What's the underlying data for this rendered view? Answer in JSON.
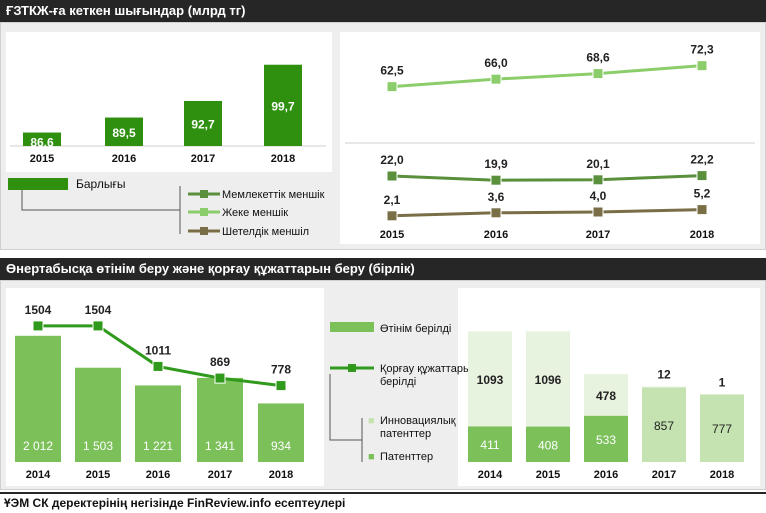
{
  "colors": {
    "bar_dark": "#2f8f0f",
    "bar_mid": "#7cc05a",
    "bar_light": "#c5e3b0",
    "bar_pale": "#e7f2df",
    "line_light": "#8ccd6b",
    "line_mid": "#5a8f3c",
    "line_dark": "#7a6e46",
    "line_patent": "#2f9a1b"
  },
  "top": {
    "title": "ҒЗТКЖ-ға кеткен шығындар (млрд тг)",
    "legend": {
      "total": "Барлығы",
      "state": "Мемлекеттік меншік",
      "private": "Жеке меншік",
      "foreign": "Шетелдік меншіл"
    }
  },
  "bottom": {
    "title": "Өнертабысқа өтінім беру және қорғау құжаттарын беру (бірлік)",
    "legend": {
      "applications": "Өтінім берілді",
      "granted": "Қорғау құжаттары берілді",
      "innovation": "Инновациялық патенттер",
      "patents": "Патенттер"
    }
  },
  "footer": {
    "source": "ҰЭМ СК деректерінің негізінде FinReview.info есептеулері"
  },
  "chart_data": [
    {
      "type": "bar",
      "categories": [
        "2015",
        "2016",
        "2017",
        "2018"
      ],
      "series": [
        {
          "name": "Барлығы",
          "values": [
            86.6,
            89.5,
            92.7,
            99.7
          ]
        }
      ],
      "data_labels": [
        "86,6",
        "89,5",
        "92,7",
        "99,7"
      ],
      "ylim": [
        84,
        101
      ]
    },
    {
      "type": "line",
      "categories": [
        "2015",
        "2016",
        "2017",
        "2018"
      ],
      "series": [
        {
          "name": "Жеке меншік",
          "values": [
            62.5,
            66.0,
            68.6,
            72.3
          ],
          "labels": [
            "62,5",
            "66,0",
            "68,6",
            "72,3"
          ]
        },
        {
          "name": "Мемлекеттік меншік",
          "values": [
            22.0,
            19.9,
            20.1,
            22.2
          ],
          "labels": [
            "22,0",
            "19,9",
            "20,1",
            "22,2"
          ]
        },
        {
          "name": "Шетелдік меншіл",
          "values": [
            2.1,
            3.6,
            4.0,
            5.2
          ],
          "labels": [
            "2,1",
            "3,6",
            "4,0",
            "5,2"
          ]
        }
      ]
    },
    {
      "type": "bar",
      "categories": [
        "2014",
        "2015",
        "2016",
        "2017",
        "2018"
      ],
      "series": [
        {
          "name": "Өтінім берілді",
          "values": [
            2012,
            1503,
            1221,
            1341,
            934
          ],
          "labels": [
            "2 012",
            "1 503",
            "1 221",
            "1 341",
            "934"
          ]
        },
        {
          "name": "Қорғау құжаттары берілді",
          "type": "line",
          "values": [
            1504,
            1504,
            1011,
            869,
            778
          ],
          "labels": [
            "1504",
            "1504",
            "1011",
            "869",
            "778"
          ]
        }
      ],
      "ylim": [
        0,
        2200
      ]
    },
    {
      "type": "bar",
      "stacked": true,
      "categories": [
        "2014",
        "2015",
        "2016",
        "2017",
        "2018"
      ],
      "series": [
        {
          "name": "Патенттер",
          "values": [
            411,
            408,
            533,
            857,
            777
          ],
          "labels": [
            "411",
            "408",
            "533",
            "857",
            "777"
          ]
        },
        {
          "name": "Инновациялық патенттер",
          "values": [
            1093,
            1096,
            478,
            12,
            1
          ],
          "labels": [
            "1093",
            "1096",
            "478",
            "12",
            "1"
          ]
        }
      ],
      "ylim": [
        0,
        1600
      ]
    }
  ]
}
